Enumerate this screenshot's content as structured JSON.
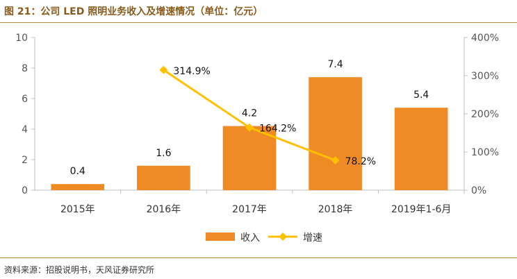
{
  "header": {
    "title": "图 21：公司 LED 照明业务收入及增速情况（单位：亿元）"
  },
  "footer": {
    "source": "资料来源：招股说明书，天风证券研究所"
  },
  "chart_data": {
    "type": "bar",
    "categories": [
      "2015年",
      "2016年",
      "2017年",
      "2018年",
      "2019年1-6月"
    ],
    "series": [
      {
        "name": "收入",
        "type": "bar",
        "axis": "left",
        "color": "#f08a24",
        "values": [
          0.4,
          1.6,
          4.2,
          7.4,
          5.4
        ],
        "labels": [
          "0.4",
          "1.6",
          "4.2",
          "7.4",
          "5.4"
        ]
      },
      {
        "name": "增速",
        "type": "line",
        "axis": "right",
        "color": "#ffc000",
        "values": [
          null,
          314.9,
          164.2,
          78.2,
          null
        ],
        "labels": [
          "",
          "314.9%",
          "164.2%",
          "78.2%",
          ""
        ]
      }
    ],
    "ylim": [
      0,
      10
    ],
    "yticks": [
      "0",
      "2",
      "4",
      "6",
      "8",
      "10"
    ],
    "y2lim": [
      0,
      400
    ],
    "y2ticks": [
      "0%",
      "100%",
      "200%",
      "300%",
      "400%"
    ],
    "grid": false,
    "legend": "bottom"
  }
}
